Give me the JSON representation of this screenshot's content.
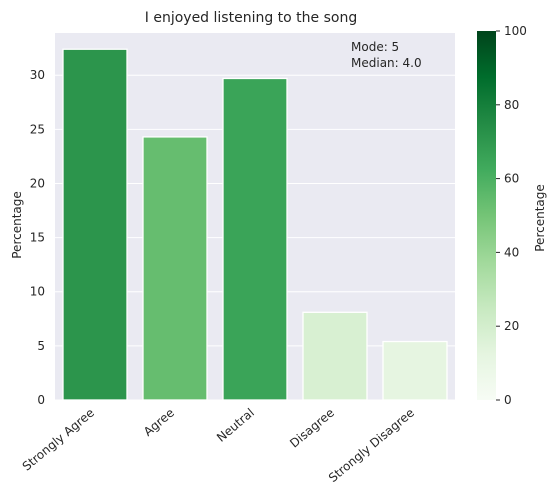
{
  "chart_data": {
    "type": "bar",
    "title": "I enjoyed listening to the song",
    "xlabel": "",
    "ylabel": "Percentage",
    "categories": [
      "Strongly Agree",
      "Agree",
      "Neutral",
      "Disagree",
      "Strongly Disagree"
    ],
    "values": [
      32.4,
      24.3,
      29.7,
      8.1,
      5.4
    ],
    "ylim": [
      0,
      33.9
    ],
    "yticks": [
      0,
      5,
      10,
      15,
      20,
      25,
      30
    ],
    "grid": true,
    "annotation": {
      "mode_text": "Mode: 5",
      "median_text": "Median: 4.0"
    },
    "colorbar": {
      "label": "Percentage",
      "range": [
        0,
        100
      ],
      "ticks": [
        0,
        20,
        40,
        60,
        80,
        100
      ],
      "colormap": "Greens",
      "colors": [
        "#f7fcf5",
        "#e5f5e0",
        "#c7e9c0",
        "#a1d99b",
        "#74c476",
        "#41ab5d",
        "#238b45",
        "#006d2c",
        "#00441b"
      ]
    },
    "plot_background": "#eaeaf2",
    "bar_edge_color": "#ffffff"
  }
}
